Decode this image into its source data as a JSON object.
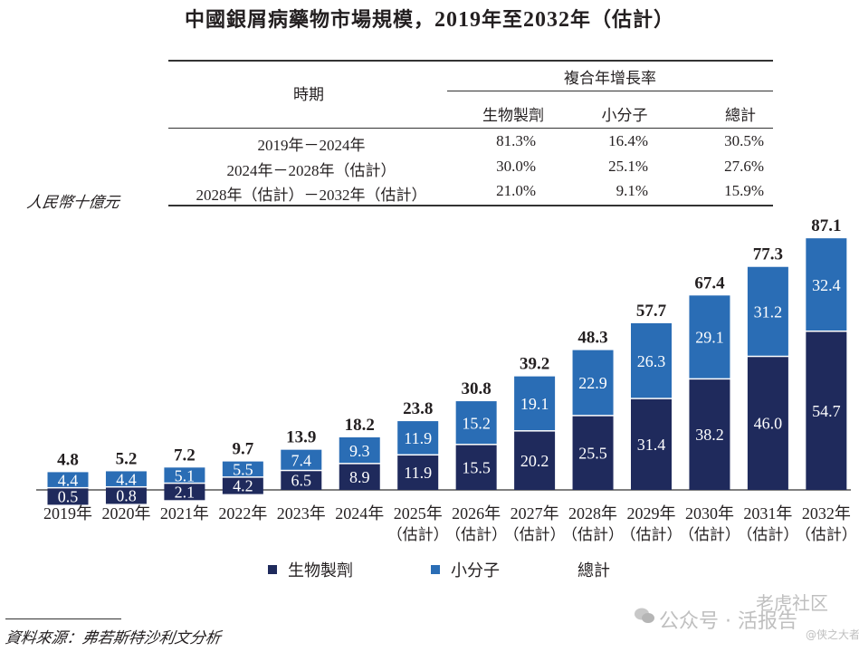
{
  "title": {
    "prefix": "中國銀屑病藥物市場規模，",
    "year_start": "2019",
    "mid1": "年至",
    "year_end": "2032",
    "suffix": "年（估計）"
  },
  "cagr_table": {
    "period_header": "時期",
    "group_header": "複合年增長率",
    "columns": [
      "生物製劑",
      "小分子",
      "總計"
    ],
    "rows": [
      {
        "period": "2019年－2024年",
        "values": [
          "81.3%",
          "16.4%",
          "30.5%"
        ]
      },
      {
        "period": "2024年－2028年（估計）",
        "values": [
          "30.0%",
          "25.1%",
          "27.6%"
        ]
      },
      {
        "period": "2028年（估計）－2032年（估計）",
        "values": [
          "21.0%",
          "9.1%",
          "15.9%"
        ]
      }
    ]
  },
  "unit_label": "人民幣十億元",
  "colors": {
    "biologics": "#1f2a5c",
    "small_molecule": "#2a6db5",
    "axis": "#555555",
    "text": "#231f20"
  },
  "chart_data": {
    "type": "bar",
    "stacked": true,
    "title": "中國銀屑病藥物市場規模，2019年至2032年（估計）",
    "ylabel": "人民幣十億元",
    "xlabel": "",
    "ylim": [
      0,
      90
    ],
    "grid": false,
    "legend_position": "bottom",
    "categories": [
      "2019年",
      "2020年",
      "2021年",
      "2022年",
      "2023年",
      "2024年",
      "2025年",
      "2026年",
      "2027年",
      "2028年",
      "2029年",
      "2030年",
      "2031年",
      "2032年"
    ],
    "category_sublabels": [
      "",
      "",
      "",
      "",
      "",
      "",
      "（估計）",
      "（估計）",
      "（估計）",
      "（估計）",
      "（估計）",
      "（估計）",
      "（估計）",
      "（估計）"
    ],
    "series": [
      {
        "name": "生物製劑",
        "values": [
          0.5,
          0.8,
          2.1,
          4.2,
          6.5,
          8.9,
          11.9,
          15.5,
          20.2,
          25.5,
          31.4,
          38.2,
          46.0,
          54.7
        ]
      },
      {
        "name": "小分子",
        "values": [
          4.4,
          4.4,
          5.1,
          5.5,
          7.4,
          9.3,
          11.9,
          15.2,
          19.1,
          22.9,
          26.3,
          29.1,
          31.2,
          32.4
        ]
      }
    ],
    "totals": {
      "name": "總計",
      "values": [
        4.8,
        5.2,
        7.2,
        9.7,
        13.9,
        18.2,
        23.8,
        30.8,
        39.2,
        48.3,
        57.7,
        67.4,
        77.3,
        87.1
      ]
    }
  },
  "legend": {
    "items": [
      "生物製劑",
      "小分子",
      "總計"
    ]
  },
  "source": "資料來源：弗若斯特沙利文分析",
  "watermark": {
    "main": "公众号 · 活报告",
    "top": "老虎社区",
    "sub": "@侠之大者"
  }
}
